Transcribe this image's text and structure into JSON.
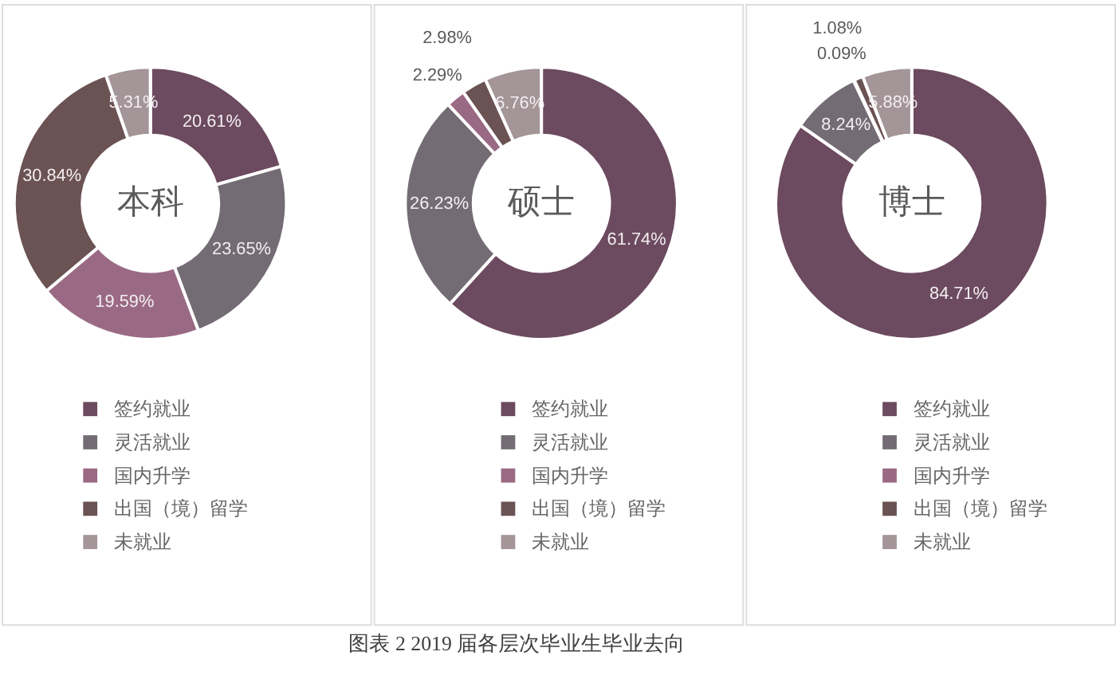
{
  "chart_data": [
    {
      "type": "donut",
      "title": "本科",
      "categories": [
        "签约就业",
        "灵活就业",
        "国内升学",
        "出国（境）留学",
        "未就业"
      ],
      "values": [
        20.61,
        23.65,
        19.59,
        30.84,
        5.31
      ],
      "colors": [
        "#6c4a5f",
        "#746c74",
        "#9a6a85",
        "#6b5253",
        "#a39598"
      ],
      "value_labels": [
        "20.61%",
        "23.65%",
        "19.59%",
        "30.84%",
        "5.31%"
      ],
      "legend": "bottom"
    },
    {
      "type": "donut",
      "title": "硕士",
      "categories": [
        "签约就业",
        "灵活就业",
        "国内升学",
        "出国（境）留学",
        "未就业"
      ],
      "values": [
        61.74,
        26.23,
        2.29,
        2.98,
        6.76
      ],
      "colors": [
        "#6c4a5f",
        "#746c74",
        "#9a6a85",
        "#6b5253",
        "#a39598"
      ],
      "value_labels": [
        "61.74%",
        "26.23%",
        "2.29%",
        "2.98%",
        "6.76%"
      ],
      "legend": "bottom",
      "annotations": [
        "图表 2  2019 届各层次毕业生毕业去向"
      ]
    },
    {
      "type": "donut",
      "title": "博士",
      "categories": [
        "签约就业",
        "灵活就业",
        "国内升学",
        "出国（境）留学",
        "未就业"
      ],
      "values": [
        84.71,
        8.24,
        0.09,
        1.08,
        5.88
      ],
      "colors": [
        "#6c4a5f",
        "#746c74",
        "#9a6a85",
        "#6b5253",
        "#a39598"
      ],
      "value_labels": [
        "84.71%",
        "8.24%",
        "0.09%",
        "1.08%",
        "5.88%"
      ],
      "legend": "bottom"
    }
  ]
}
